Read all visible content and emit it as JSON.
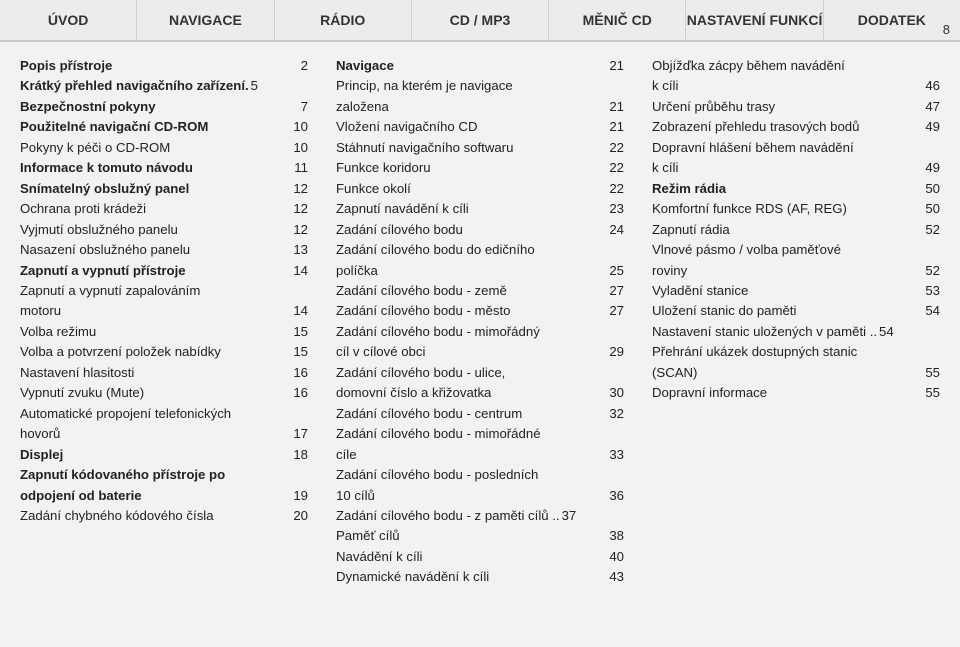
{
  "pageNumber": "8",
  "tabs": [
    "ÚVOD",
    "NAVIGACE",
    "RÁDIO",
    "CD / MP3",
    "MĚNIČ CD",
    "NASTAVENÍ FUNKCÍ",
    "DODATEK"
  ],
  "columns": [
    [
      {
        "type": "line",
        "bold": true,
        "label": "Popis přístroje",
        "page": "2"
      },
      {
        "type": "line",
        "bold": true,
        "label": "Krátký přehled navigačního zařízení.",
        "page": "5",
        "nodots": true
      },
      {
        "type": "line",
        "bold": true,
        "label": "Bezpečnostní pokyny",
        "page": "7"
      },
      {
        "type": "line",
        "bold": true,
        "label": "Použitelné navigační CD-ROM",
        "page": "10"
      },
      {
        "type": "line",
        "bold": false,
        "label": "Pokyny k péči o CD-ROM",
        "page": "10"
      },
      {
        "type": "line",
        "bold": true,
        "label": "Informace k tomuto návodu",
        "page": "11"
      },
      {
        "type": "line",
        "bold": true,
        "label": "Snímatelný obslužný panel",
        "page": "12"
      },
      {
        "type": "line",
        "bold": false,
        "label": "Ochrana proti krádeži",
        "page": "12"
      },
      {
        "type": "line",
        "bold": false,
        "label": "Vyjmutí obslužného panelu",
        "page": "12"
      },
      {
        "type": "line",
        "bold": false,
        "label": "Nasazení obslužného panelu",
        "page": "13"
      },
      {
        "type": "line",
        "bold": true,
        "label": "Zapnutí a vypnutí přístroje",
        "page": "14"
      },
      {
        "type": "wrap",
        "bold": false,
        "label": "Zapnutí a vypnutí zapalováním"
      },
      {
        "type": "line",
        "bold": false,
        "label": "motoru",
        "page": "14"
      },
      {
        "type": "line",
        "bold": false,
        "label": "Volba režimu",
        "page": "15"
      },
      {
        "type": "line",
        "bold": false,
        "label": "Volba a potvrzení položek nabídky",
        "page": "15"
      },
      {
        "type": "line",
        "bold": false,
        "label": "Nastavení hlasitosti",
        "page": "16"
      },
      {
        "type": "line",
        "bold": false,
        "label": "Vypnutí zvuku (Mute)",
        "page": "16"
      },
      {
        "type": "wrap",
        "bold": false,
        "label": "Automatické propojení telefonických"
      },
      {
        "type": "line",
        "bold": false,
        "label": "hovorů",
        "page": "17"
      },
      {
        "type": "line",
        "bold": true,
        "label": "Displej",
        "page": "18"
      },
      {
        "type": "wrap",
        "bold": true,
        "label": "Zapnutí kódovaného přístroje po"
      },
      {
        "type": "line",
        "bold": true,
        "label": "odpojení od baterie",
        "page": "19"
      },
      {
        "type": "line",
        "bold": false,
        "label": "Zadání chybného kódového čísla",
        "page": "20"
      }
    ],
    [
      {
        "type": "line",
        "bold": true,
        "label": "Navigace",
        "page": "21"
      },
      {
        "type": "wrap",
        "bold": false,
        "label": "Princip, na kterém je navigace"
      },
      {
        "type": "line",
        "bold": false,
        "label": "založena",
        "page": "21"
      },
      {
        "type": "line",
        "bold": false,
        "label": "Vložení navigačního CD",
        "page": "21"
      },
      {
        "type": "line",
        "bold": false,
        "label": "Stáhnutí navigačního softwaru",
        "page": "22"
      },
      {
        "type": "line",
        "bold": false,
        "label": "Funkce koridoru",
        "page": "22"
      },
      {
        "type": "line",
        "bold": false,
        "label": "Funkce okolí",
        "page": "22"
      },
      {
        "type": "line",
        "bold": false,
        "label": "Zapnutí navádění k cíli",
        "page": "23"
      },
      {
        "type": "line",
        "bold": false,
        "label": "Zadání cílového bodu",
        "page": "24"
      },
      {
        "type": "wrap",
        "bold": false,
        "label": "Zadání cílového bodu do edičního"
      },
      {
        "type": "line",
        "bold": false,
        "label": "políčka",
        "page": "25"
      },
      {
        "type": "line",
        "bold": false,
        "label": "Zadání cílového bodu - země",
        "page": "27"
      },
      {
        "type": "line",
        "bold": false,
        "label": "Zadání cílového bodu - město",
        "page": "27"
      },
      {
        "type": "wrap",
        "bold": false,
        "label": "Zadání cílového bodu - mimořádný"
      },
      {
        "type": "line",
        "bold": false,
        "label": "cíl v cílové obci",
        "page": "29"
      },
      {
        "type": "wrap",
        "bold": false,
        "label": "Zadání cílového bodu - ulice,"
      },
      {
        "type": "line",
        "bold": false,
        "label": "domovní číslo a křižovatka",
        "page": "30"
      },
      {
        "type": "line",
        "bold": false,
        "label": "Zadání cílového bodu - centrum",
        "page": "32"
      },
      {
        "type": "wrap",
        "bold": false,
        "label": "Zadání cílového bodu - mimořádné"
      },
      {
        "type": "line",
        "bold": false,
        "label": "cíle",
        "page": "33"
      },
      {
        "type": "wrap",
        "bold": false,
        "label": "Zadání cílového bodu - posledních"
      },
      {
        "type": "line",
        "bold": false,
        "label": "10 cílů",
        "page": "36"
      },
      {
        "type": "line",
        "bold": false,
        "label": "Zadání cílového bodu - z paměti cílů ..",
        "page": "37",
        "nodots": true
      },
      {
        "type": "line",
        "bold": false,
        "label": "Paměť cílů",
        "page": "38"
      },
      {
        "type": "line",
        "bold": false,
        "label": "Navádění k cíli",
        "page": "40"
      },
      {
        "type": "line",
        "bold": false,
        "label": "Dynamické navádění k cíli",
        "page": "43"
      }
    ],
    [
      {
        "type": "wrap",
        "bold": false,
        "label": "Objížďka zácpy během navádění"
      },
      {
        "type": "line",
        "bold": false,
        "label": "k cíli",
        "page": "46"
      },
      {
        "type": "line",
        "bold": false,
        "label": "Určení průběhu trasy",
        "page": "47"
      },
      {
        "type": "line",
        "bold": false,
        "label": "Zobrazení přehledu trasových bodů",
        "page": "49"
      },
      {
        "type": "wrap",
        "bold": false,
        "label": "Dopravní hlášení během navádění"
      },
      {
        "type": "line",
        "bold": false,
        "label": "k cíli",
        "page": "49"
      },
      {
        "type": "line",
        "bold": true,
        "label": "Režim rádia",
        "page": "50"
      },
      {
        "type": "line",
        "bold": false,
        "label": "Komfortní funkce RDS (AF, REG)",
        "page": "50"
      },
      {
        "type": "line",
        "bold": false,
        "label": "Zapnutí rádia",
        "page": "52"
      },
      {
        "type": "wrap",
        "bold": false,
        "label": "Vlnové pásmo / volba paměťové"
      },
      {
        "type": "line",
        "bold": false,
        "label": "roviny",
        "page": "52"
      },
      {
        "type": "line",
        "bold": false,
        "label": "Vyladění stanice",
        "page": "53"
      },
      {
        "type": "line",
        "bold": false,
        "label": "Uložení stanic do paměti",
        "page": "54"
      },
      {
        "type": "line",
        "bold": false,
        "label": "Nastavení stanic uložených v paměti ..",
        "page": "54",
        "nodots": true
      },
      {
        "type": "wrap",
        "bold": false,
        "label": "Přehrání ukázek dostupných stanic"
      },
      {
        "type": "line",
        "bold": false,
        "label": "(SCAN)",
        "page": "55"
      },
      {
        "type": "line",
        "bold": false,
        "label": "Dopravní informace",
        "page": "55"
      }
    ]
  ]
}
